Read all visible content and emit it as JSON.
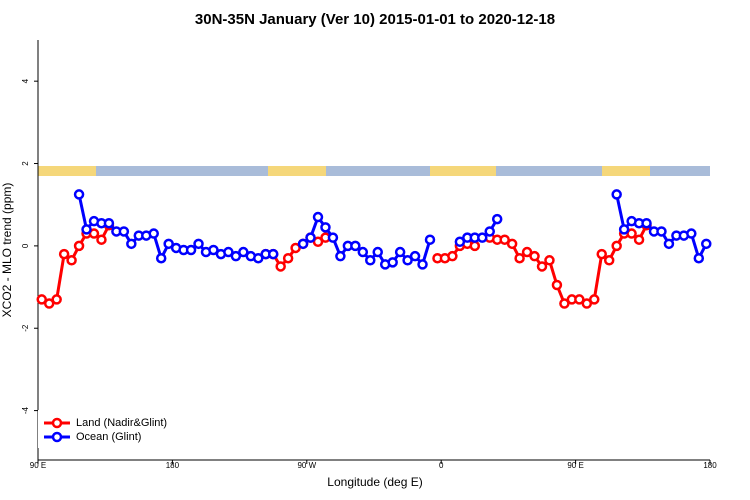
{
  "chart_data": {
    "type": "line",
    "title": "30N-35N January (Ver 10)   2015-01-01 to 2020-12-18",
    "x_label": "Longitude (deg E)",
    "y_label": "XCO2 - MLO trend (ppm)",
    "xlim": [
      90,
      540
    ],
    "ylim": [
      -5.2,
      5
    ],
    "xticks": [
      {
        "value": 90,
        "label": "90 E"
      },
      180,
      {
        "value": 270,
        "label": "90 W"
      },
      {
        "value": 360,
        "label": "0"
      },
      {
        "value": 450,
        "label": "90 E"
      },
      {
        "value": 540,
        "label": "180"
      }
    ],
    "yticks": [
      -4,
      -2,
      0,
      2,
      4
    ],
    "legend": "bottom-left",
    "x": [
      92.5,
      97.5,
      102.5,
      107.5,
      112.5,
      117.5,
      122.5,
      127.5,
      132.5,
      137.5,
      142.5,
      147.5,
      152.5,
      157.5,
      162.5,
      167.5,
      172.5,
      177.5,
      182.5,
      187.5,
      192.5,
      197.5,
      202.5,
      207.5,
      212.5,
      217.5,
      222.5,
      227.5,
      232.5,
      237.5,
      242.5,
      247.5,
      252.5,
      257.5,
      262.5,
      267.5,
      272.5,
      277.5,
      282.5,
      287.5,
      292.5,
      297.5,
      302.5,
      307.5,
      312.5,
      317.5,
      322.5,
      327.5,
      332.5,
      337.5,
      342.5,
      347.5,
      352.5,
      357.5,
      362.5,
      367.5,
      372.5,
      377.5,
      382.5,
      387.5,
      392.5,
      397.5,
      402.5,
      407.5,
      412.5,
      417.5,
      422.5,
      427.5,
      432.5,
      437.5,
      442.5,
      447.5,
      452.5,
      457.5,
      462.5,
      467.5,
      472.5,
      477.5,
      482.5,
      487.5,
      492.5,
      497.5,
      502.5,
      507.5,
      512.5,
      517.5,
      522.5,
      527.5,
      532.5,
      537.5
    ],
    "series": [
      {
        "name": "Land (Nadir&Glint)",
        "color": "#ff0000",
        "values": [
          -1.3,
          -1.4,
          -1.3,
          -0.2,
          -0.35,
          0,
          0.3,
          0.3,
          0.15,
          0.5,
          null,
          null,
          null,
          null,
          null,
          null,
          null,
          null,
          null,
          null,
          null,
          null,
          null,
          null,
          null,
          null,
          null,
          null,
          null,
          null,
          -0.2,
          -0.2,
          -0.5,
          -0.3,
          -0.05,
          0.05,
          0.2,
          0.1,
          0.2,
          null,
          null,
          null,
          null,
          null,
          null,
          null,
          null,
          null,
          null,
          null,
          null,
          null,
          null,
          -0.3,
          -0.3,
          -0.25,
          0,
          0.05,
          0,
          null,
          0.2,
          0.15,
          0.15,
          0.05,
          -0.3,
          -0.15,
          -0.25,
          -0.5,
          -0.35,
          -0.95,
          -1.4,
          -1.3,
          -1.3,
          -1.4,
          -1.3,
          -0.2,
          -0.35,
          0,
          0.3,
          0.3,
          0.15,
          0.5,
          null,
          null,
          null,
          null,
          null,
          null,
          null,
          null
        ]
      },
      {
        "name": "Ocean (Glint)",
        "color": "#0000ff",
        "values": [
          null,
          null,
          null,
          null,
          null,
          1.25,
          0.4,
          0.6,
          0.55,
          0.55,
          0.35,
          0.35,
          0.05,
          0.25,
          0.25,
          0.3,
          -0.3,
          0.05,
          -0.05,
          -0.1,
          -0.1,
          0.05,
          -0.15,
          -0.1,
          -0.2,
          -0.15,
          -0.25,
          -0.15,
          -0.25,
          -0.3,
          -0.2,
          -0.2,
          null,
          null,
          null,
          0.05,
          0.2,
          0.7,
          0.45,
          0.2,
          -0.25,
          0,
          0,
          -0.15,
          -0.35,
          -0.15,
          -0.45,
          -0.4,
          -0.15,
          -0.35,
          -0.25,
          -0.45,
          0.15,
          null,
          null,
          null,
          0.1,
          0.2,
          0.2,
          0.2,
          0.35,
          0.65,
          null,
          null,
          null,
          null,
          null,
          null,
          null,
          null,
          null,
          null,
          null,
          null,
          null,
          null,
          null,
          1.25,
          0.4,
          0.6,
          0.55,
          0.55,
          0.35,
          0.35,
          0.05,
          0.25,
          0.25,
          0.3,
          -0.3,
          0.05
        ]
      }
    ]
  }
}
